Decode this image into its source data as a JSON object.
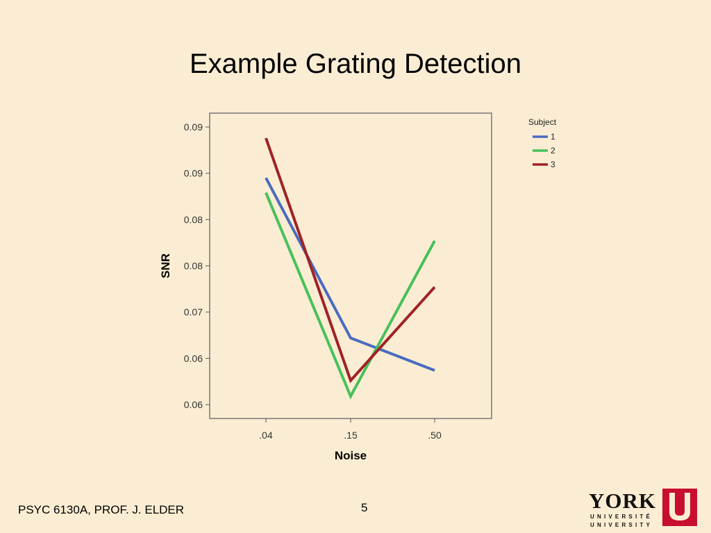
{
  "slide": {
    "title": "Example Grating Detection",
    "footer_left": "PSYC 6130A, PROF. J. ELDER",
    "page_number": "5",
    "logo": {
      "word": "YORK",
      "line1": "UNIVERSITÉ",
      "line2": "UNIVERSITY",
      "color": "#c8102e"
    }
  },
  "chart_data": {
    "type": "line",
    "xlabel": "Noise",
    "ylabel": "SNR",
    "categories": [
      ".04",
      ".15",
      ".50"
    ],
    "y_ticks": [
      {
        "value": 0.06,
        "label": "0.06"
      },
      {
        "value": 0.065,
        "label": "0.06"
      },
      {
        "value": 0.07,
        "label": "0.07"
      },
      {
        "value": 0.075,
        "label": "0.08"
      },
      {
        "value": 0.08,
        "label": "0.08"
      },
      {
        "value": 0.085,
        "label": "0.09"
      },
      {
        "value": 0.09,
        "label": "0.09"
      }
    ],
    "ylim": [
      0.0585,
      0.0915
    ],
    "legend_title": "Subject",
    "legend_position": "top-right",
    "series": [
      {
        "name": "1",
        "color": "#4a6cbf",
        "values": [
          0.0845,
          0.0672,
          0.0637
        ]
      },
      {
        "name": "2",
        "color": "#48c05a",
        "values": [
          0.0829,
          0.0609,
          0.0777
        ]
      },
      {
        "name": "3",
        "color": "#a02226",
        "values": [
          0.0888,
          0.0626,
          0.0727
        ]
      }
    ],
    "grid": false
  }
}
